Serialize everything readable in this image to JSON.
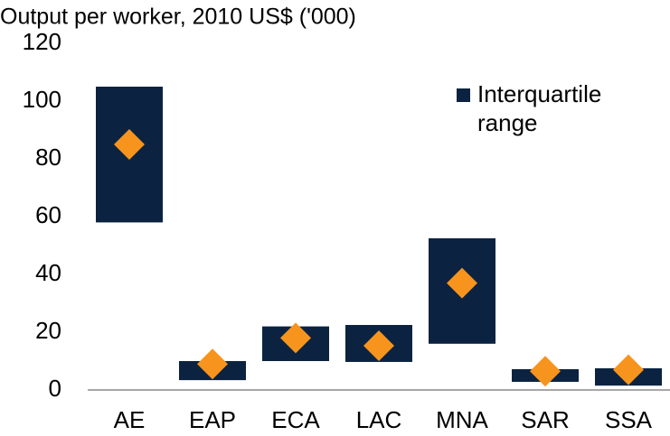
{
  "chart_data": {
    "type": "range-bar",
    "title": "Output per worker, 2010 US$ ('000)",
    "categories": [
      "AE",
      "EAP",
      "ECA",
      "LAC",
      "MNA",
      "SAR",
      "SSA"
    ],
    "series": [
      {
        "name": "Interquartile range",
        "color": "#0b2341",
        "low": [
          58,
          3.4,
          10,
          9.7,
          16,
          2.8,
          1.5
        ],
        "high": [
          105,
          10,
          22,
          22.5,
          52.5,
          7.2,
          7.5
        ]
      }
    ],
    "medians": {
      "color": "#f7941d",
      "values": [
        85,
        9,
        18,
        15.3,
        37,
        6.5,
        7
      ]
    },
    "ylim": [
      0,
      120
    ],
    "yticks": [
      0,
      20,
      40,
      60,
      80,
      100,
      120
    ],
    "grid": false
  }
}
